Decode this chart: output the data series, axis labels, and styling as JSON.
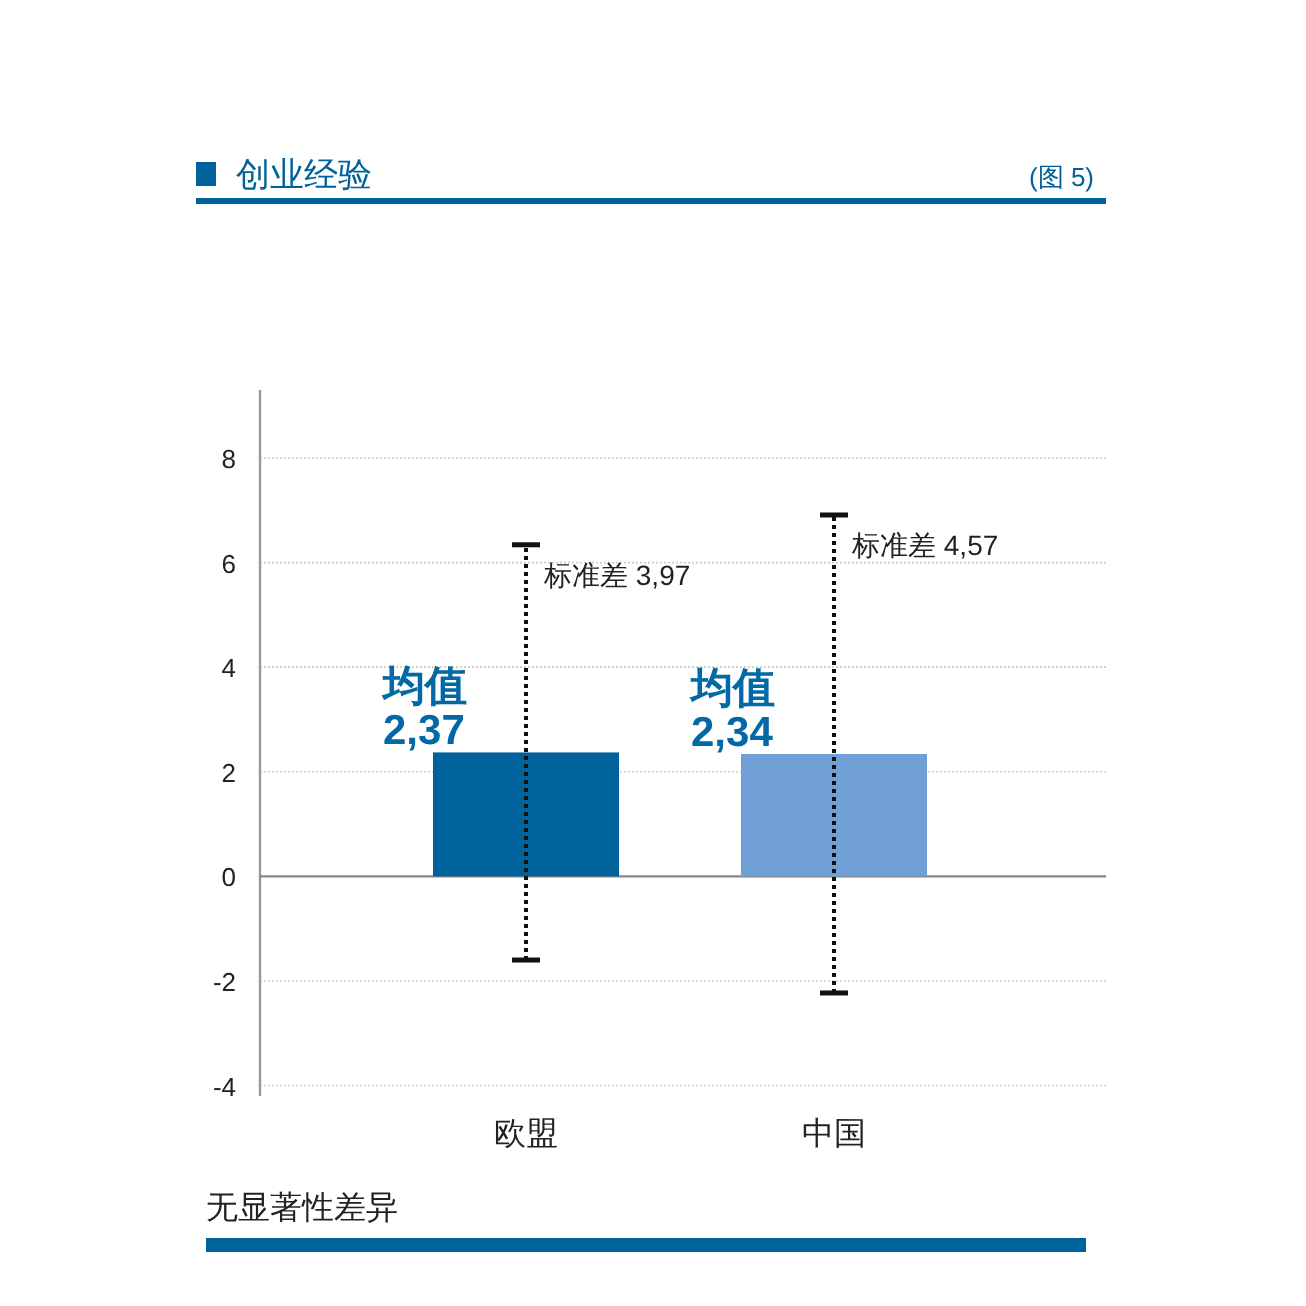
{
  "chart_data": {
    "type": "bar",
    "title": "创业经验",
    "categories": [
      "欧盟",
      "中国"
    ],
    "values": [
      2.37,
      2.34
    ],
    "colors": [
      "#00629b",
      "#6f9fd4"
    ],
    "errors": [
      3.97,
      4.57
    ],
    "value_labels": [
      "均值\n2,37",
      "均值\n2,34"
    ],
    "ylim": [
      -4.2,
      9.3
    ],
    "yticks": [
      -4,
      -2,
      0,
      2,
      4,
      6,
      8
    ],
    "grid": "y",
    "annotations": [
      "(图 5)",
      {
        "text": "标准差 3,97",
        "x": "欧盟",
        "y": 6.34
      },
      {
        "text": "标准差 4,57",
        "x": "中国",
        "y": 6.91
      },
      "无显著性差异"
    ]
  }
}
